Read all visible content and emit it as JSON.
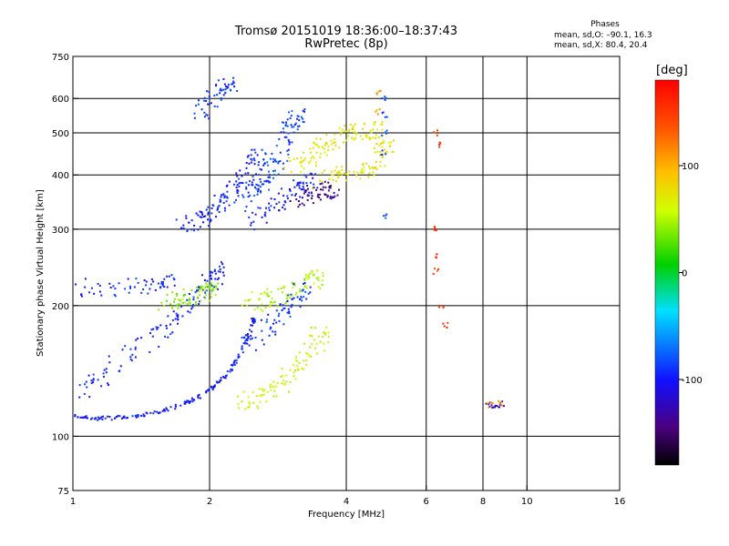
{
  "chart_data": {
    "type": "scatter",
    "title": "Tromsø 20151019 18:36:00–18:37:43",
    "subtitle": "RwPretec (8p)",
    "xlabel": "Frequency [MHz]",
    "ylabel": "Stationary phase Virtual Height [km]",
    "x_scale": "log",
    "y_scale": "log",
    "xlim": [
      1,
      16
    ],
    "ylim": [
      75,
      750
    ],
    "x_ticks": [
      1,
      2,
      4,
      6,
      8,
      10,
      16
    ],
    "y_ticks": [
      75,
      100,
      200,
      300,
      400,
      500,
      600,
      750
    ],
    "x_gridlines": [
      2,
      4,
      6,
      8,
      10
    ],
    "y_gridlines": [
      100,
      200,
      300,
      400,
      500,
      600
    ],
    "grid": true,
    "legend": {
      "title": "Phases",
      "lines": [
        "mean, sd,O: –90.1, 16.3",
        "mean, sd,X:  80.4, 20.4"
      ],
      "placement": "top-right"
    },
    "colorbar": {
      "label": "[deg]",
      "ticks": [
        100,
        0,
        -100
      ],
      "range": [
        -180,
        180
      ],
      "placement": "right"
    },
    "traces": [
      {
        "name": "",
        "kind": "curve",
        "phase": -100,
        "points": [
          [
            1.0,
            112
          ],
          [
            1.1,
            110
          ],
          [
            1.2,
            110
          ],
          [
            1.35,
            111
          ],
          [
            1.5,
            113
          ],
          [
            1.65,
            116
          ],
          [
            1.8,
            120
          ],
          [
            1.95,
            125
          ],
          [
            2.05,
            130
          ],
          [
            2.2,
            140
          ],
          [
            2.3,
            150
          ],
          [
            2.4,
            165
          ],
          [
            2.5,
            185
          ]
        ]
      },
      {
        "name": "",
        "kind": "band",
        "phase": -95,
        "points": [
          [
            1.05,
            125
          ],
          [
            1.15,
            135
          ],
          [
            1.3,
            150
          ],
          [
            1.45,
            165
          ],
          [
            1.6,
            180
          ],
          [
            1.75,
            195
          ],
          [
            1.9,
            210
          ],
          [
            2.0,
            225
          ],
          [
            2.1,
            240
          ]
        ]
      },
      {
        "name": "",
        "kind": "band",
        "phase": -95,
        "points": [
          [
            1.75,
            300
          ],
          [
            1.85,
            310
          ],
          [
            1.95,
            320
          ],
          [
            2.05,
            335
          ],
          [
            2.15,
            350
          ],
          [
            2.25,
            365
          ],
          [
            2.35,
            385
          ],
          [
            2.45,
            410
          ],
          [
            2.55,
            440
          ]
        ]
      },
      {
        "name": "",
        "kind": "band",
        "phase": -90,
        "points": [
          [
            1.9,
            550
          ],
          [
            2.0,
            590
          ],
          [
            2.1,
            620
          ],
          [
            2.2,
            640
          ]
        ]
      },
      {
        "name": "",
        "kind": "band",
        "phase": -85,
        "points": [
          [
            2.4,
            340
          ],
          [
            2.5,
            360
          ],
          [
            2.6,
            380
          ],
          [
            2.7,
            400
          ],
          [
            2.8,
            430
          ],
          [
            2.9,
            470
          ],
          [
            3.0,
            510
          ],
          [
            3.1,
            540
          ]
        ]
      },
      {
        "name": "",
        "kind": "band",
        "phase": 70,
        "points": [
          [
            3.0,
            410
          ],
          [
            3.2,
            430
          ],
          [
            3.4,
            450
          ],
          [
            3.6,
            470
          ],
          [
            3.8,
            490
          ],
          [
            4.0,
            500
          ],
          [
            4.3,
            500
          ],
          [
            4.6,
            510
          ]
        ]
      },
      {
        "name": "",
        "kind": "band",
        "phase": 75,
        "points": [
          [
            3.5,
            390
          ],
          [
            3.8,
            400
          ],
          [
            4.1,
            405
          ],
          [
            4.4,
            410
          ],
          [
            4.7,
            430
          ],
          [
            4.9,
            460
          ]
        ]
      },
      {
        "name": "",
        "kind": "band",
        "phase": -140,
        "points": [
          [
            3.1,
            350
          ],
          [
            3.3,
            355
          ],
          [
            3.5,
            360
          ],
          [
            3.7,
            370
          ]
        ]
      },
      {
        "name": "",
        "kind": "band",
        "phase": -100,
        "points": [
          [
            2.5,
            310
          ],
          [
            2.7,
            330
          ],
          [
            2.9,
            350
          ],
          [
            3.1,
            370
          ],
          [
            3.3,
            385
          ]
        ]
      },
      {
        "name": "",
        "kind": "band",
        "phase": 60,
        "points": [
          [
            2.3,
            120
          ],
          [
            2.5,
            122
          ],
          [
            2.7,
            126
          ],
          [
            2.9,
            133
          ],
          [
            3.1,
            142
          ],
          [
            3.3,
            155
          ],
          [
            3.5,
            170
          ]
        ]
      },
      {
        "name": "",
        "kind": "band",
        "phase": 50,
        "points": [
          [
            2.4,
            200
          ],
          [
            2.6,
            205
          ],
          [
            2.8,
            210
          ],
          [
            3.0,
            215
          ],
          [
            3.2,
            222
          ],
          [
            3.4,
            230
          ]
        ]
      },
      {
        "name": "",
        "kind": "band",
        "phase": -90,
        "points": [
          [
            2.4,
            160
          ],
          [
            2.6,
            170
          ],
          [
            2.8,
            185
          ],
          [
            3.0,
            200
          ],
          [
            3.2,
            215
          ]
        ]
      },
      {
        "name": "",
        "kind": "band",
        "phase": 40,
        "points": [
          [
            1.6,
            205
          ],
          [
            1.7,
            208
          ],
          [
            1.8,
            210
          ],
          [
            1.9,
            212
          ],
          [
            2.0,
            215
          ]
        ]
      },
      {
        "name": "",
        "kind": "band",
        "phase": -95,
        "points": [
          [
            1.0,
            220
          ],
          [
            1.2,
            220
          ],
          [
            1.4,
            222
          ],
          [
            1.6,
            225
          ]
        ]
      },
      {
        "name": "",
        "kind": "column",
        "phase": -80,
        "points": [
          [
            4.85,
            600
          ],
          [
            4.85,
            550
          ],
          [
            4.85,
            500
          ],
          [
            4.85,
            450
          ],
          [
            4.85,
            320
          ]
        ]
      },
      {
        "name": "",
        "kind": "column",
        "phase": 110,
        "points": [
          [
            4.7,
            620
          ],
          [
            4.7,
            560
          ]
        ]
      },
      {
        "name": "",
        "kind": "column",
        "phase": 150,
        "points": [
          [
            6.3,
            300
          ],
          [
            6.3,
            260
          ],
          [
            6.3,
            240
          ],
          [
            6.5,
            200
          ],
          [
            6.6,
            180
          ],
          [
            6.3,
            500
          ],
          [
            6.5,
            470
          ]
        ]
      },
      {
        "name": "",
        "kind": "cluster",
        "phase": -120,
        "points": [
          [
            8.2,
            118
          ],
          [
            8.4,
            117
          ],
          [
            8.6,
            118
          ],
          [
            8.8,
            119
          ]
        ]
      },
      {
        "name": "",
        "kind": "cluster",
        "phase": 110,
        "points": [
          [
            8.3,
            118
          ],
          [
            8.7,
            119
          ]
        ]
      }
    ]
  }
}
